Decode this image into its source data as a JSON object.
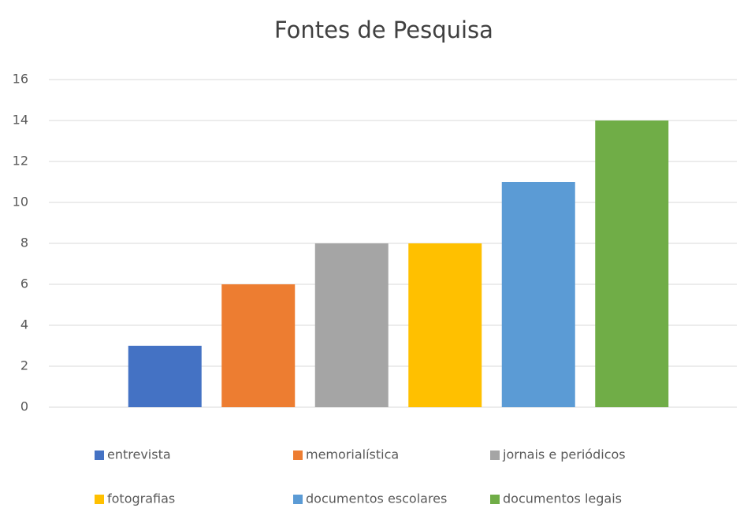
{
  "chart_data": {
    "type": "bar",
    "title": "Fontes de Pesquisa",
    "categories": [
      null
    ],
    "series": [
      {
        "name": "entrevista",
        "color": "#4472c4",
        "values": [
          3
        ]
      },
      {
        "name": "memorialística",
        "color": "#ed7d31",
        "values": [
          6
        ]
      },
      {
        "name": "jornais e periódicos",
        "color": "#a5a5a5",
        "values": [
          8
        ]
      },
      {
        "name": "fotografias",
        "color": "#ffc000",
        "values": [
          8
        ]
      },
      {
        "name": "documentos escolares",
        "color": "#5b9bd5",
        "values": [
          11
        ]
      },
      {
        "name": "documentos legais",
        "color": "#70ad47",
        "values": [
          14
        ]
      }
    ],
    "ylim": [
      0,
      16
    ],
    "yticks": [
      0,
      2,
      4,
      6,
      8,
      10,
      12,
      14,
      16
    ],
    "grid": true
  }
}
